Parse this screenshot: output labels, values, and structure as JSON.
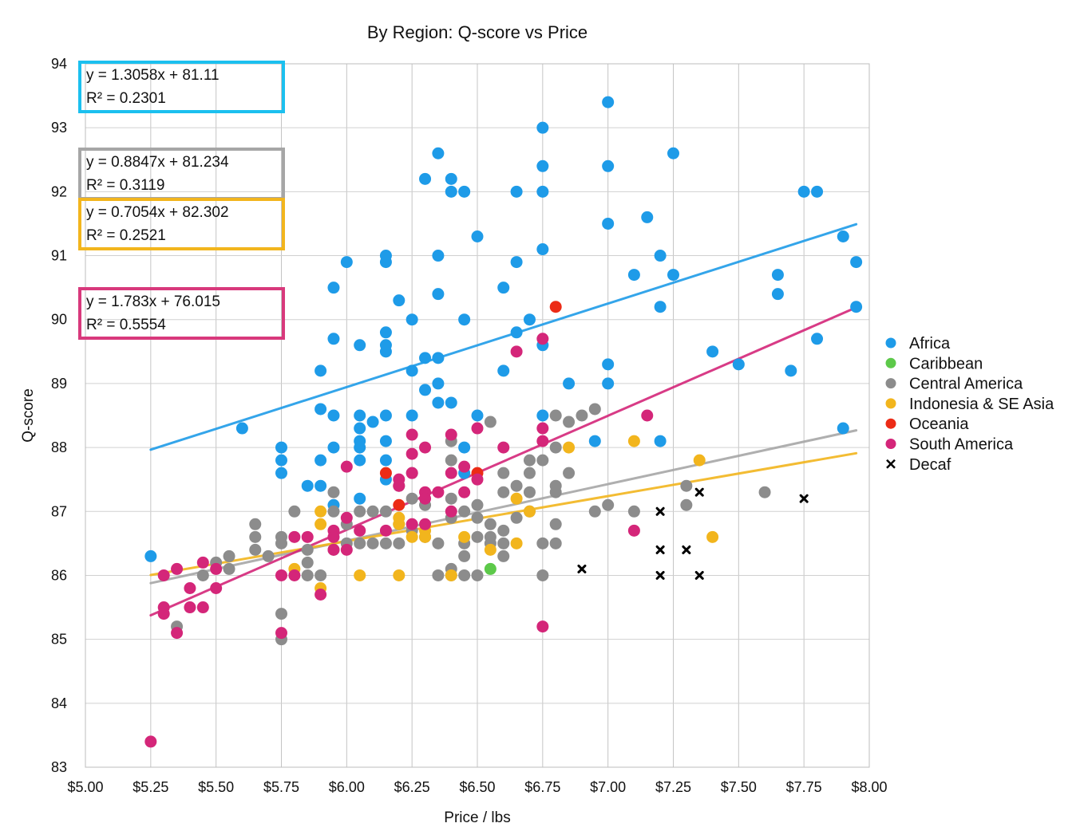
{
  "chart_data": {
    "type": "scatter",
    "title": "By Region: Q-score vs Price",
    "xlabel": "Price / lbs",
    "ylabel": "Q-score",
    "xlim": [
      5.0,
      8.0
    ],
    "ylim": [
      83,
      94
    ],
    "x_ticks": [
      "$5.00",
      "$5.25",
      "$5.50",
      "$5.75",
      "$6.00",
      "$6.25",
      "$6.50",
      "$6.75",
      "$7.00",
      "$7.25",
      "$7.50",
      "$7.75",
      "$8.00"
    ],
    "y_ticks": [
      "83",
      "84",
      "85",
      "86",
      "87",
      "88",
      "89",
      "90",
      "91",
      "92",
      "93",
      "94"
    ],
    "grid": true,
    "legend_position": "right",
    "series": [
      {
        "name": "Africa",
        "color": "#1e9be8",
        "marker": "circle",
        "points": [
          [
            5.25,
            86.3
          ],
          [
            5.6,
            88.3
          ],
          [
            5.75,
            88.0
          ],
          [
            5.75,
            87.8
          ],
          [
            5.75,
            87.6
          ],
          [
            5.85,
            87.4
          ],
          [
            5.9,
            89.2
          ],
          [
            5.9,
            88.6
          ],
          [
            5.9,
            87.8
          ],
          [
            5.9,
            87.4
          ],
          [
            5.95,
            90.5
          ],
          [
            5.95,
            89.7
          ],
          [
            5.95,
            88.5
          ],
          [
            5.95,
            88.0
          ],
          [
            5.95,
            87.1
          ],
          [
            6.0,
            90.9
          ],
          [
            6.05,
            89.6
          ],
          [
            6.05,
            88.5
          ],
          [
            6.05,
            88.3
          ],
          [
            6.05,
            88.1
          ],
          [
            6.05,
            88.0
          ],
          [
            6.05,
            87.8
          ],
          [
            6.05,
            87.2
          ],
          [
            6.1,
            88.4
          ],
          [
            6.15,
            91.0
          ],
          [
            6.15,
            90.9
          ],
          [
            6.15,
            89.8
          ],
          [
            6.15,
            89.6
          ],
          [
            6.15,
            89.5
          ],
          [
            6.15,
            88.5
          ],
          [
            6.15,
            88.1
          ],
          [
            6.15,
            87.8
          ],
          [
            6.15,
            87.5
          ],
          [
            6.2,
            90.3
          ],
          [
            6.25,
            90.0
          ],
          [
            6.25,
            89.2
          ],
          [
            6.25,
            88.5
          ],
          [
            6.3,
            92.2
          ],
          [
            6.3,
            89.4
          ],
          [
            6.3,
            88.9
          ],
          [
            6.35,
            92.6
          ],
          [
            6.35,
            91.0
          ],
          [
            6.35,
            90.4
          ],
          [
            6.35,
            89.4
          ],
          [
            6.35,
            89.0
          ],
          [
            6.35,
            88.7
          ],
          [
            6.4,
            92.2
          ],
          [
            6.4,
            92.0
          ],
          [
            6.4,
            88.7
          ],
          [
            6.45,
            92.0
          ],
          [
            6.45,
            90.0
          ],
          [
            6.45,
            88.0
          ],
          [
            6.45,
            87.6
          ],
          [
            6.5,
            91.3
          ],
          [
            6.5,
            88.5
          ],
          [
            6.6,
            90.5
          ],
          [
            6.6,
            89.2
          ],
          [
            6.65,
            92.0
          ],
          [
            6.65,
            90.9
          ],
          [
            6.65,
            89.8
          ],
          [
            6.7,
            90.0
          ],
          [
            6.75,
            93.0
          ],
          [
            6.75,
            92.4
          ],
          [
            6.75,
            92.0
          ],
          [
            6.75,
            91.1
          ],
          [
            6.75,
            89.6
          ],
          [
            6.75,
            88.5
          ],
          [
            6.85,
            89.0
          ],
          [
            6.95,
            88.1
          ],
          [
            7.0,
            93.4
          ],
          [
            7.0,
            92.4
          ],
          [
            7.0,
            91.5
          ],
          [
            7.0,
            89.3
          ],
          [
            7.0,
            89.0
          ],
          [
            7.1,
            90.7
          ],
          [
            7.15,
            91.6
          ],
          [
            7.2,
            91.0
          ],
          [
            7.2,
            90.2
          ],
          [
            7.2,
            88.1
          ],
          [
            7.25,
            92.6
          ],
          [
            7.25,
            90.7
          ],
          [
            7.4,
            89.5
          ],
          [
            7.5,
            89.3
          ],
          [
            7.65,
            90.7
          ],
          [
            7.65,
            90.4
          ],
          [
            7.7,
            89.2
          ],
          [
            7.75,
            92.0
          ],
          [
            7.8,
            92.0
          ],
          [
            7.8,
            89.7
          ],
          [
            7.9,
            91.3
          ],
          [
            7.9,
            88.3
          ],
          [
            7.95,
            90.9
          ],
          [
            7.95,
            90.2
          ]
        ]
      },
      {
        "name": "Caribbean",
        "color": "#5dc94a",
        "marker": "circle",
        "points": [
          [
            6.55,
            86.1
          ]
        ]
      },
      {
        "name": "Central America",
        "color": "#8c8c8c",
        "marker": "circle",
        "points": [
          [
            5.35,
            85.2
          ],
          [
            5.45,
            86.0
          ],
          [
            5.5,
            86.2
          ],
          [
            5.55,
            86.3
          ],
          [
            5.55,
            86.1
          ],
          [
            5.65,
            86.8
          ],
          [
            5.65,
            86.6
          ],
          [
            5.65,
            86.4
          ],
          [
            5.7,
            86.3
          ],
          [
            5.75,
            86.6
          ],
          [
            5.75,
            86.5
          ],
          [
            5.75,
            85.4
          ],
          [
            5.75,
            85.0
          ],
          [
            5.8,
            87.0
          ],
          [
            5.85,
            86.4
          ],
          [
            5.85,
            86.2
          ],
          [
            5.85,
            86.0
          ],
          [
            5.9,
            86.0
          ],
          [
            5.95,
            87.3
          ],
          [
            5.95,
            87.0
          ],
          [
            5.95,
            86.4
          ],
          [
            6.0,
            86.8
          ],
          [
            6.0,
            86.5
          ],
          [
            6.05,
            87.0
          ],
          [
            6.05,
            86.5
          ],
          [
            6.1,
            87.0
          ],
          [
            6.1,
            86.5
          ],
          [
            6.15,
            87.0
          ],
          [
            6.15,
            86.5
          ],
          [
            6.2,
            87.4
          ],
          [
            6.2,
            86.5
          ],
          [
            6.2,
            86.8
          ],
          [
            6.25,
            87.6
          ],
          [
            6.25,
            87.2
          ],
          [
            6.25,
            86.7
          ],
          [
            6.3,
            87.1
          ],
          [
            6.3,
            86.6
          ],
          [
            6.35,
            86.5
          ],
          [
            6.35,
            86.0
          ],
          [
            6.4,
            88.1
          ],
          [
            6.4,
            87.8
          ],
          [
            6.4,
            87.2
          ],
          [
            6.4,
            86.9
          ],
          [
            6.4,
            86.1
          ],
          [
            6.4,
            86.0
          ],
          [
            6.45,
            87.0
          ],
          [
            6.45,
            86.5
          ],
          [
            6.45,
            86.3
          ],
          [
            6.45,
            86.0
          ],
          [
            6.5,
            87.1
          ],
          [
            6.5,
            86.9
          ],
          [
            6.5,
            86.6
          ],
          [
            6.5,
            86.0
          ],
          [
            6.55,
            88.4
          ],
          [
            6.55,
            86.8
          ],
          [
            6.55,
            86.6
          ],
          [
            6.55,
            86.5
          ],
          [
            6.6,
            87.6
          ],
          [
            6.6,
            87.3
          ],
          [
            6.6,
            86.7
          ],
          [
            6.6,
            86.5
          ],
          [
            6.6,
            86.3
          ],
          [
            6.65,
            87.4
          ],
          [
            6.65,
            86.9
          ],
          [
            6.7,
            87.8
          ],
          [
            6.7,
            87.6
          ],
          [
            6.7,
            87.3
          ],
          [
            6.7,
            87.0
          ],
          [
            6.75,
            87.8
          ],
          [
            6.75,
            86.5
          ],
          [
            6.75,
            86.0
          ],
          [
            6.8,
            88.5
          ],
          [
            6.8,
            88.0
          ],
          [
            6.8,
            87.4
          ],
          [
            6.8,
            87.3
          ],
          [
            6.8,
            86.8
          ],
          [
            6.8,
            86.5
          ],
          [
            6.85,
            88.4
          ],
          [
            6.85,
            87.6
          ],
          [
            6.9,
            88.5
          ],
          [
            6.95,
            88.6
          ],
          [
            6.95,
            87.0
          ],
          [
            7.0,
            87.1
          ],
          [
            7.1,
            87.0
          ],
          [
            7.3,
            87.4
          ],
          [
            7.3,
            87.1
          ],
          [
            7.6,
            87.3
          ]
        ]
      },
      {
        "name": "Indonesia & SE Asia",
        "color": "#f2b51d",
        "marker": "circle",
        "points": [
          [
            5.8,
            86.1
          ],
          [
            5.9,
            87.0
          ],
          [
            5.9,
            86.8
          ],
          [
            5.9,
            85.8
          ],
          [
            6.05,
            86.0
          ],
          [
            6.2,
            86.0
          ],
          [
            6.2,
            86.9
          ],
          [
            6.2,
            86.8
          ],
          [
            6.25,
            86.6
          ],
          [
            6.3,
            86.7
          ],
          [
            6.3,
            86.6
          ],
          [
            6.4,
            86.0
          ],
          [
            6.45,
            86.6
          ],
          [
            6.55,
            86.4
          ],
          [
            6.65,
            87.2
          ],
          [
            6.65,
            86.5
          ],
          [
            6.7,
            87.0
          ],
          [
            6.85,
            88.0
          ],
          [
            7.1,
            88.1
          ],
          [
            7.35,
            87.8
          ],
          [
            7.4,
            86.6
          ]
        ]
      },
      {
        "name": "Oceania",
        "color": "#ec2b16",
        "marker": "circle",
        "points": [
          [
            6.15,
            87.6
          ],
          [
            6.2,
            87.1
          ],
          [
            6.5,
            87.6
          ],
          [
            6.8,
            90.2
          ]
        ]
      },
      {
        "name": "South America",
        "color": "#d42679",
        "marker": "circle",
        "points": [
          [
            5.25,
            83.4
          ],
          [
            5.3,
            86.0
          ],
          [
            5.3,
            85.5
          ],
          [
            5.3,
            85.4
          ],
          [
            5.35,
            86.1
          ],
          [
            5.35,
            85.1
          ],
          [
            5.4,
            85.8
          ],
          [
            5.4,
            85.5
          ],
          [
            5.45,
            86.2
          ],
          [
            5.45,
            85.5
          ],
          [
            5.5,
            86.1
          ],
          [
            5.5,
            85.8
          ],
          [
            5.75,
            86.0
          ],
          [
            5.75,
            85.1
          ],
          [
            5.8,
            86.6
          ],
          [
            5.8,
            86.0
          ],
          [
            5.85,
            86.6
          ],
          [
            5.9,
            85.7
          ],
          [
            5.95,
            86.7
          ],
          [
            5.95,
            86.6
          ],
          [
            5.95,
            86.4
          ],
          [
            6.0,
            87.7
          ],
          [
            6.0,
            86.9
          ],
          [
            6.0,
            86.4
          ],
          [
            6.05,
            86.7
          ],
          [
            6.15,
            86.7
          ],
          [
            6.2,
            87.5
          ],
          [
            6.2,
            87.4
          ],
          [
            6.25,
            88.2
          ],
          [
            6.25,
            87.9
          ],
          [
            6.25,
            87.6
          ],
          [
            6.25,
            86.8
          ],
          [
            6.3,
            88.0
          ],
          [
            6.3,
            87.3
          ],
          [
            6.3,
            87.2
          ],
          [
            6.3,
            86.8
          ],
          [
            6.35,
            87.3
          ],
          [
            6.4,
            88.2
          ],
          [
            6.4,
            87.6
          ],
          [
            6.4,
            87.0
          ],
          [
            6.45,
            87.7
          ],
          [
            6.45,
            87.3
          ],
          [
            6.5,
            88.3
          ],
          [
            6.5,
            87.5
          ],
          [
            6.6,
            88.0
          ],
          [
            6.65,
            89.5
          ],
          [
            6.75,
            89.7
          ],
          [
            6.75,
            88.3
          ],
          [
            6.75,
            88.1
          ],
          [
            6.75,
            85.2
          ],
          [
            7.1,
            86.7
          ],
          [
            7.15,
            88.5
          ]
        ]
      },
      {
        "name": "Decaf",
        "color": "#000000",
        "marker": "x",
        "points": [
          [
            6.9,
            86.1
          ],
          [
            7.2,
            87.0
          ],
          [
            7.2,
            86.4
          ],
          [
            7.2,
            86.0
          ],
          [
            7.3,
            86.4
          ],
          [
            7.35,
            87.3
          ],
          [
            7.35,
            86.0
          ],
          [
            7.75,
            87.2
          ]
        ]
      }
    ],
    "trendlines": [
      {
        "series": "Africa",
        "color": "#1e9be8",
        "x_range": [
          5.25,
          7.95
        ],
        "slope": 1.3058,
        "intercept": 81.11,
        "equation": "y = 1.3058x + 81.11",
        "r2": "R² = 0.2301"
      },
      {
        "series": "Central America",
        "color": "#a6a6a6",
        "x_range": [
          5.25,
          7.95
        ],
        "slope": 0.8847,
        "intercept": 81.234,
        "equation": "y = 0.8847x + 81.234",
        "r2": "R² = 0.3119"
      },
      {
        "series": "Indonesia & SE Asia",
        "color": "#f2b51d",
        "x_range": [
          5.25,
          7.95
        ],
        "slope": 0.7054,
        "intercept": 82.302,
        "equation": "y = 0.7054x + 82.302",
        "r2": "R² = 0.2521"
      },
      {
        "series": "South America",
        "color": "#d42679",
        "x_range": [
          5.25,
          7.95
        ],
        "slope": 1.783,
        "intercept": 76.015,
        "equation": "y = 1.783x + 76.015",
        "r2": "R² = 0.5554"
      }
    ],
    "equation_box_colors": [
      "#1bc0ef",
      "#a6a6a6",
      "#f2b51d",
      "#d8397c"
    ]
  }
}
